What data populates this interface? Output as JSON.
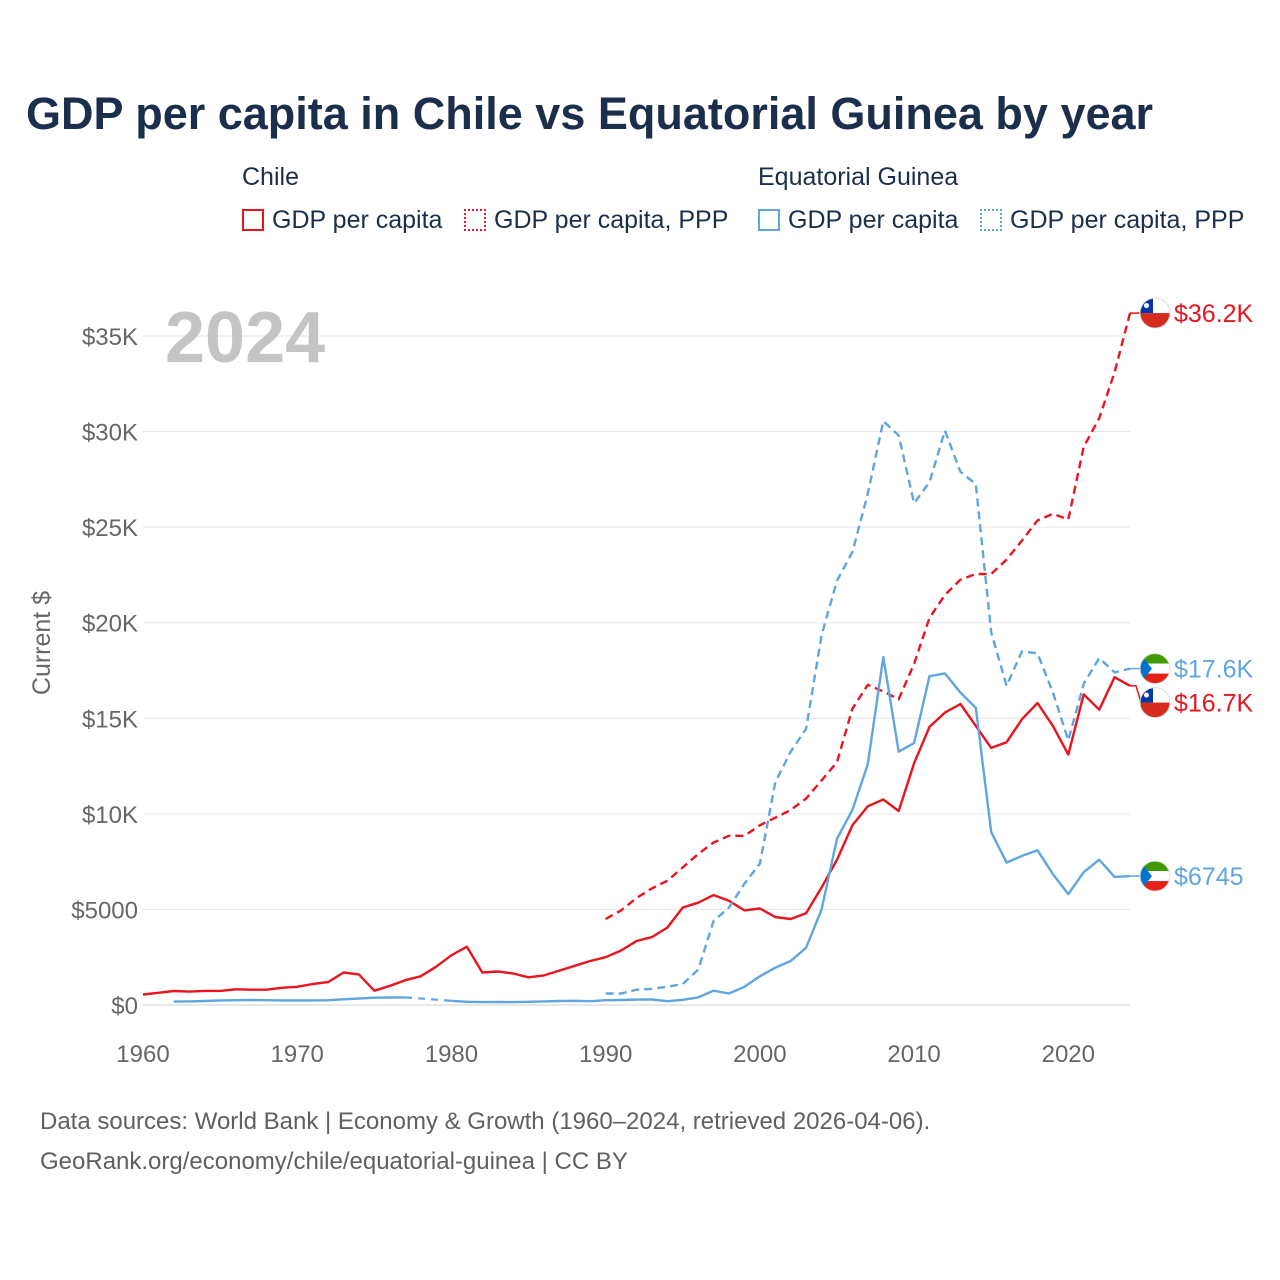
{
  "title": "GDP per capita in Chile vs Equatorial Guinea by year",
  "legend": {
    "chile_group": "Chile",
    "eg_group": "Equatorial Guinea",
    "chile_gdp": "GDP per capita",
    "chile_ppp": "GDP per capita, PPP",
    "eg_gdp": "GDP per capita",
    "eg_ppp": "GDP per capita, PPP"
  },
  "footer": {
    "line1": "Data sources: World Bank | Economy & Growth (1960–2024, retrieved 2026-04-06).",
    "line2": "GeoRank.org/economy/chile/equatorial-guinea | CC BY"
  },
  "colors": {
    "chile": "#e8141e",
    "eg": "#5fa6e0",
    "axis_text": "#666666",
    "year_watermark": "#c4c4c4",
    "grid": "#e6e6e6"
  },
  "chart_data": {
    "type": "line",
    "title": "GDP per capita in Chile vs Equatorial Guinea by year",
    "year_label": "2024",
    "xlabel": "",
    "ylabel": "Current $",
    "xlim": [
      1960,
      2024
    ],
    "ylim": [
      0,
      37000
    ],
    "x_ticks": [
      1960,
      1970,
      1980,
      1990,
      2000,
      2010,
      2020
    ],
    "y_ticks": [
      0,
      5000,
      10000,
      15000,
      20000,
      25000,
      30000,
      35000
    ],
    "y_tick_labels": [
      "$0",
      "$5000",
      "$10K",
      "$15K",
      "$20K",
      "$25K",
      "$30K",
      "$35K"
    ],
    "series": [
      {
        "name": "Chile GDP per capita",
        "country": "Chile",
        "style": "solid",
        "end_label": "$16.7K",
        "points": [
          [
            1960,
            550
          ],
          [
            1961,
            640
          ],
          [
            1962,
            730
          ],
          [
            1963,
            700
          ],
          [
            1964,
            740
          ],
          [
            1965,
            740
          ],
          [
            1966,
            820
          ],
          [
            1967,
            800
          ],
          [
            1968,
            800
          ],
          [
            1969,
            900
          ],
          [
            1970,
            950
          ],
          [
            1971,
            1100
          ],
          [
            1972,
            1200
          ],
          [
            1973,
            1700
          ],
          [
            1974,
            1600
          ],
          [
            1975,
            750
          ],
          [
            1976,
            1000
          ],
          [
            1977,
            1300
          ],
          [
            1978,
            1500
          ],
          [
            1979,
            2000
          ],
          [
            1980,
            2600
          ],
          [
            1981,
            3050
          ],
          [
            1982,
            1700
          ],
          [
            1983,
            1750
          ],
          [
            1984,
            1650
          ],
          [
            1985,
            1450
          ],
          [
            1986,
            1550
          ],
          [
            1987,
            1800
          ],
          [
            1988,
            2050
          ],
          [
            1989,
            2300
          ],
          [
            1990,
            2500
          ],
          [
            1991,
            2850
          ],
          [
            1992,
            3350
          ],
          [
            1993,
            3550
          ],
          [
            1994,
            4050
          ],
          [
            1995,
            5100
          ],
          [
            1996,
            5350
          ],
          [
            1997,
            5750
          ],
          [
            1998,
            5450
          ],
          [
            1999,
            4950
          ],
          [
            2000,
            5050
          ],
          [
            2001,
            4600
          ],
          [
            2002,
            4500
          ],
          [
            2003,
            4800
          ],
          [
            2004,
            6150
          ],
          [
            2005,
            7600
          ],
          [
            2006,
            9400
          ],
          [
            2007,
            10400
          ],
          [
            2008,
            10750
          ],
          [
            2009,
            10150
          ],
          [
            2010,
            12650
          ],
          [
            2011,
            14550
          ],
          [
            2012,
            15300
          ],
          [
            2013,
            15750
          ],
          [
            2014,
            14600
          ],
          [
            2015,
            13450
          ],
          [
            2016,
            13750
          ],
          [
            2017,
            14950
          ],
          [
            2018,
            15800
          ],
          [
            2019,
            14600
          ],
          [
            2020,
            13100
          ],
          [
            2021,
            16250
          ],
          [
            2022,
            15450
          ],
          [
            2023,
            17150
          ],
          [
            2024,
            16700
          ]
        ]
      },
      {
        "name": "Chile GDP per capita, PPP",
        "country": "Chile",
        "style": "dashed",
        "end_label": "$36.2K",
        "points": [
          [
            1990,
            4500
          ],
          [
            1991,
            4950
          ],
          [
            1992,
            5600
          ],
          [
            1993,
            6100
          ],
          [
            1994,
            6500
          ],
          [
            1995,
            7200
          ],
          [
            1996,
            7900
          ],
          [
            1997,
            8500
          ],
          [
            1998,
            8850
          ],
          [
            1999,
            8850
          ],
          [
            2000,
            9400
          ],
          [
            2001,
            9800
          ],
          [
            2002,
            10200
          ],
          [
            2003,
            10800
          ],
          [
            2004,
            11750
          ],
          [
            2005,
            12700
          ],
          [
            2006,
            15500
          ],
          [
            2007,
            16750
          ],
          [
            2008,
            16400
          ],
          [
            2009,
            16000
          ],
          [
            2010,
            17850
          ],
          [
            2011,
            20250
          ],
          [
            2012,
            21450
          ],
          [
            2013,
            22250
          ],
          [
            2014,
            22550
          ],
          [
            2015,
            22550
          ],
          [
            2016,
            23300
          ],
          [
            2017,
            24300
          ],
          [
            2018,
            25350
          ],
          [
            2019,
            25700
          ],
          [
            2020,
            25400
          ],
          [
            2021,
            29200
          ],
          [
            2022,
            30700
          ],
          [
            2023,
            33100
          ],
          [
            2024,
            36200
          ]
        ]
      },
      {
        "name": "Equatorial Guinea GDP per capita",
        "country": "Equatorial Guinea",
        "style": "solid",
        "end_label": "$6745",
        "points": [
          [
            1962,
            180
          ],
          [
            1963,
            190
          ],
          [
            1964,
            210
          ],
          [
            1965,
            240
          ],
          [
            1966,
            250
          ],
          [
            1967,
            260
          ],
          [
            1968,
            250
          ],
          [
            1969,
            240
          ],
          [
            1970,
            240
          ],
          [
            1971,
            240
          ],
          [
            1972,
            250
          ],
          [
            1973,
            300
          ],
          [
            1974,
            340
          ],
          [
            1975,
            380
          ],
          [
            1976,
            390
          ],
          [
            1977,
            400
          ],
          [
            1978,
            null
          ],
          [
            1979,
            null
          ],
          [
            1980,
            220
          ],
          [
            1981,
            170
          ],
          [
            1982,
            150
          ],
          [
            1983,
            160
          ],
          [
            1984,
            150
          ],
          [
            1985,
            170
          ],
          [
            1986,
            190
          ],
          [
            1987,
            210
          ],
          [
            1988,
            220
          ],
          [
            1989,
            200
          ],
          [
            1990,
            250
          ],
          [
            1991,
            260
          ],
          [
            1992,
            280
          ],
          [
            1993,
            290
          ],
          [
            1994,
            200
          ],
          [
            1995,
            270
          ],
          [
            1996,
            400
          ],
          [
            1997,
            750
          ],
          [
            1998,
            600
          ],
          [
            1999,
            950
          ],
          [
            2000,
            1500
          ],
          [
            2001,
            1950
          ],
          [
            2002,
            2300
          ],
          [
            2003,
            3000
          ],
          [
            2004,
            5000
          ],
          [
            2005,
            8700
          ],
          [
            2006,
            10200
          ],
          [
            2007,
            12600
          ],
          [
            2008,
            18200
          ],
          [
            2009,
            13250
          ],
          [
            2010,
            13700
          ],
          [
            2011,
            17200
          ],
          [
            2012,
            17350
          ],
          [
            2013,
            16350
          ],
          [
            2014,
            15550
          ],
          [
            2015,
            9050
          ],
          [
            2016,
            7450
          ],
          [
            2017,
            7800
          ],
          [
            2018,
            8100
          ],
          [
            2019,
            6850
          ],
          [
            2020,
            5800
          ],
          [
            2021,
            6950
          ],
          [
            2022,
            7600
          ],
          [
            2023,
            6700
          ],
          [
            2024,
            6745
          ]
        ]
      },
      {
        "name": "Equatorial Guinea GDP per capita, PPP",
        "country": "Equatorial Guinea",
        "style": "dashed",
        "end_label": "$17.6K",
        "points": [
          [
            1990,
            600
          ],
          [
            1991,
            600
          ],
          [
            1992,
            800
          ],
          [
            1993,
            850
          ],
          [
            1994,
            950
          ],
          [
            1995,
            1100
          ],
          [
            1996,
            1850
          ],
          [
            1997,
            4400
          ],
          [
            1998,
            5100
          ],
          [
            1999,
            6350
          ],
          [
            2000,
            7400
          ],
          [
            2001,
            11650
          ],
          [
            2002,
            13250
          ],
          [
            2003,
            14450
          ],
          [
            2004,
            19350
          ],
          [
            2005,
            22200
          ],
          [
            2006,
            23700
          ],
          [
            2007,
            26750
          ],
          [
            2008,
            30550
          ],
          [
            2009,
            29800
          ],
          [
            2010,
            26250
          ],
          [
            2011,
            27350
          ],
          [
            2012,
            30050
          ],
          [
            2013,
            27900
          ],
          [
            2014,
            27250
          ],
          [
            2015,
            19500
          ],
          [
            2016,
            16700
          ],
          [
            2017,
            18500
          ],
          [
            2018,
            18400
          ],
          [
            2019,
            16350
          ],
          [
            2020,
            13850
          ],
          [
            2021,
            16800
          ],
          [
            2022,
            18150
          ],
          [
            2023,
            17400
          ],
          [
            2024,
            17600
          ]
        ]
      }
    ]
  }
}
